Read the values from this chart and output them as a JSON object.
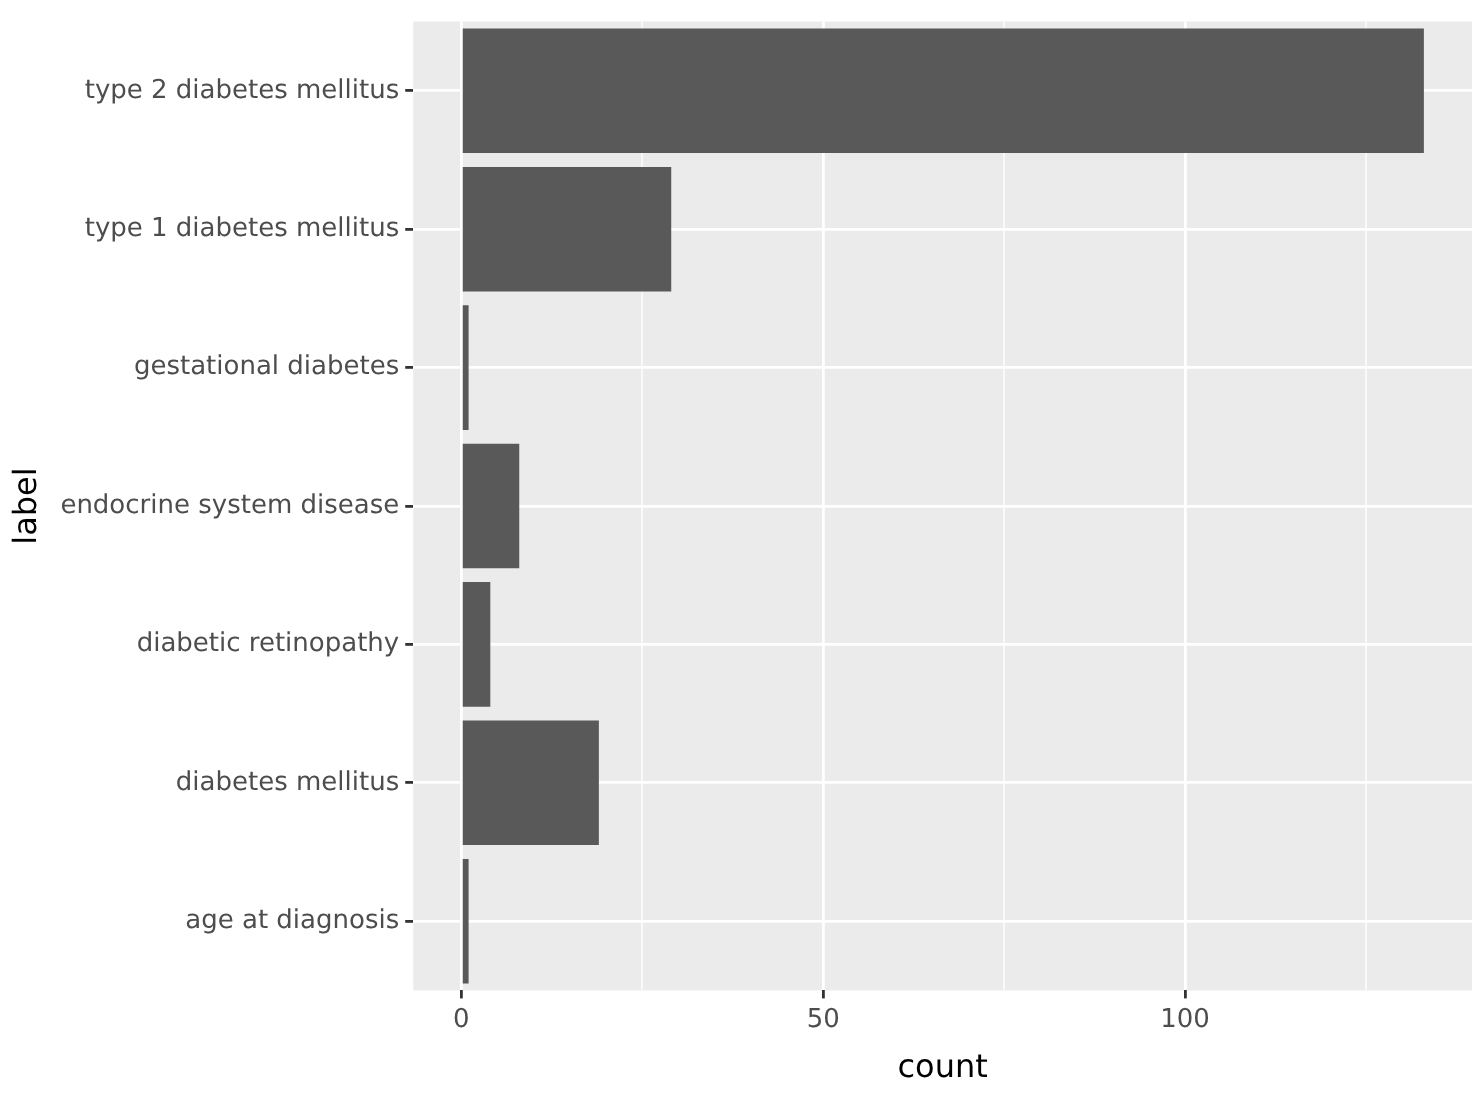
{
  "chart_data": {
    "type": "bar",
    "orientation": "horizontal",
    "xlabel": "count",
    "ylabel": "label",
    "categories": [
      "type 2 diabetes mellitus",
      "type 1 diabetes mellitus",
      "gestational diabetes",
      "endocrine system disease",
      "diabetic retinopathy",
      "diabetes mellitus",
      "age at diagnosis"
    ],
    "values": [
      133,
      29,
      1,
      8,
      4,
      19,
      1
    ],
    "color": "#595959",
    "xlim": [
      -6.65,
      139.65
    ],
    "xticks": [
      0,
      {
        "value": 25,
        "label": null
      },
      50,
      {
        "value": 75,
        "label": null
      },
      100,
      {
        "value": 125,
        "label": null
      }
    ],
    "grid": true,
    "legend": false
  }
}
